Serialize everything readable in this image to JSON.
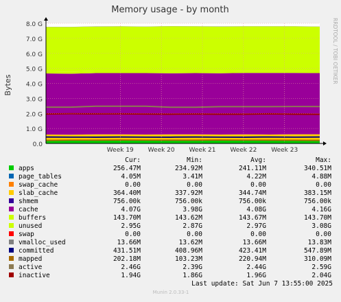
{
  "chart_data": {
    "type": "area",
    "title": "Memory usage - by month",
    "ylabel": "Bytes",
    "side_label": "RRDTOOL / TOBI OETIKER",
    "ylim": [
      0,
      8.0
    ],
    "y_unit": "G",
    "y_ticks": [
      "0.0",
      "1.0 G",
      "2.0 G",
      "3.0 G",
      "4.0 G",
      "5.0 G",
      "6.0 G",
      "7.0 G",
      "8.0 G"
    ],
    "x_ticks": [
      "Week 19",
      "Week 20",
      "Week 21",
      "Week 22",
      "Week 23"
    ],
    "grid": true,
    "stack_order": [
      "apps",
      "page_tables",
      "swap_cache",
      "slab_cache",
      "shmem",
      "cache",
      "buffers",
      "unused",
      "swap",
      "vmalloc_used"
    ],
    "series": [
      {
        "name": "apps",
        "color": "#00cc00",
        "values": [
          0.25,
          0.24,
          0.26,
          0.25,
          0.25,
          0.26,
          0.25,
          0.25,
          0.26,
          0.24,
          0.25,
          0.25
        ],
        "cur": "256.47M",
        "min": "234.92M",
        "avg": "241.11M",
        "max": "340.51M"
      },
      {
        "name": "page_tables",
        "color": "#0066b3",
        "values": [
          0.004,
          0.004,
          0.004,
          0.004,
          0.004,
          0.004,
          0.004,
          0.004,
          0.004,
          0.004,
          0.004,
          0.004
        ],
        "cur": "4.05M",
        "min": "3.41M",
        "avg": "4.22M",
        "max": "4.88M"
      },
      {
        "name": "swap_cache",
        "color": "#ff8000",
        "values": [
          0,
          0,
          0,
          0,
          0,
          0,
          0,
          0,
          0,
          0,
          0,
          0
        ],
        "cur": "0.00",
        "min": "0.00",
        "avg": "0.00",
        "max": "0.00"
      },
      {
        "name": "slab_cache",
        "color": "#ffcc00",
        "values": [
          0.34,
          0.34,
          0.34,
          0.35,
          0.34,
          0.34,
          0.35,
          0.34,
          0.34,
          0.35,
          0.36,
          0.36
        ],
        "cur": "364.40M",
        "min": "337.92M",
        "avg": "344.74M",
        "max": "383.15M"
      },
      {
        "name": "shmem",
        "color": "#330099",
        "values": [
          0.00074,
          0.00074,
          0.00074,
          0.00074,
          0.00074,
          0.00074,
          0.00074,
          0.00074,
          0.00074,
          0.00074,
          0.00074,
          0.00074
        ],
        "cur": "756.00k",
        "min": "756.00k",
        "avg": "756.00k",
        "max": "756.00k"
      },
      {
        "name": "cache",
        "color": "#990099",
        "values": [
          4.07,
          4.06,
          4.08,
          4.08,
          4.09,
          4.07,
          4.08,
          4.08,
          4.09,
          4.1,
          4.08,
          4.07
        ],
        "cur": "4.07G",
        "min": "3.98G",
        "avg": "4.08G",
        "max": "4.16G"
      },
      {
        "name": "buffers",
        "color": "#ccff00",
        "values": [
          0.14,
          0.14,
          0.14,
          0.14,
          0.14,
          0.14,
          0.14,
          0.14,
          0.14,
          0.14,
          0.14,
          0.14
        ],
        "cur": "143.70M",
        "min": "143.62M",
        "avg": "143.67M",
        "max": "143.70M"
      },
      {
        "name": "unused",
        "color": "#ccff00",
        "values": [
          2.95,
          2.97,
          2.96,
          2.97,
          2.95,
          2.99,
          2.97,
          2.97,
          2.96,
          2.96,
          2.96,
          2.95
        ],
        "cur": "2.95G",
        "min": "2.87G",
        "avg": "2.97G",
        "max": "3.08G"
      },
      {
        "name": "swap",
        "color": "#ff0000",
        "values": [
          0,
          0,
          0,
          0,
          0,
          0,
          0,
          0,
          0,
          0,
          0,
          0
        ],
        "cur": "0.00",
        "min": "0.00",
        "avg": "0.00",
        "max": "0.00"
      },
      {
        "name": "vmalloc_used",
        "color": "#808080",
        "values": [
          0.0137,
          0.0137,
          0.0137,
          0.0137,
          0.0137,
          0.0137,
          0.0137,
          0.0137,
          0.0137,
          0.0137,
          0.0137,
          0.0137
        ],
        "cur": "13.66M",
        "min": "13.62M",
        "avg": "13.66M",
        "max": "13.83M"
      }
    ],
    "line_series": [
      {
        "name": "committed",
        "color": "#000080",
        "values": [
          0.43,
          0.42,
          0.42,
          0.43,
          0.42,
          0.42,
          0.43,
          0.42,
          0.42,
          0.43,
          0.42,
          0.43
        ],
        "cur": "431.51M",
        "min": "408.96M",
        "avg": "423.41M",
        "max": "547.89M"
      },
      {
        "name": "mapped",
        "color": "#a86b00",
        "values": [
          0.2,
          0.22,
          0.22,
          0.23,
          0.22,
          0.22,
          0.22,
          0.23,
          0.22,
          0.22,
          0.21,
          0.2
        ],
        "cur": "202.18M",
        "min": "103.23M",
        "avg": "220.94M",
        "max": "310.09M"
      },
      {
        "name": "active",
        "color": "#8c7a52",
        "values": [
          2.42,
          2.42,
          2.48,
          2.48,
          2.48,
          2.41,
          2.41,
          2.45,
          2.45,
          2.45,
          2.46,
          2.46
        ],
        "cur": "2.46G",
        "min": "2.39G",
        "avg": "2.44G",
        "max": "2.59G"
      },
      {
        "name": "inactive",
        "color": "#a00000",
        "values": [
          1.96,
          1.98,
          1.97,
          1.97,
          1.96,
          1.95,
          1.96,
          1.95,
          1.95,
          1.97,
          1.95,
          1.94
        ],
        "cur": "1.94G",
        "min": "1.86G",
        "avg": "1.96G",
        "max": "2.04G"
      }
    ],
    "legend_order": [
      "apps",
      "page_tables",
      "swap_cache",
      "slab_cache",
      "shmem",
      "cache",
      "buffers",
      "unused",
      "swap",
      "vmalloc_used",
      "committed",
      "mapped",
      "active",
      "inactive"
    ]
  },
  "legend_headers": {
    "cur": "Cur:",
    "min": "Min:",
    "avg": "Avg:",
    "max": "Max:"
  },
  "last_update": "Last update:  Sat Jun  7 13:55:00 2025",
  "footer": "Munin 2.0.33-1"
}
